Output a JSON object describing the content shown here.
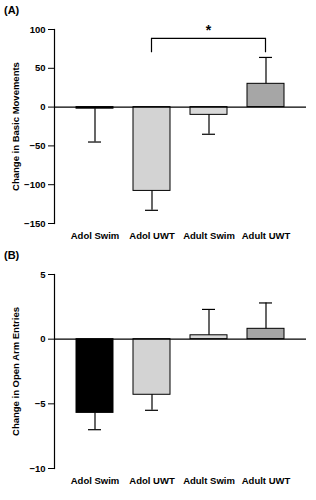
{
  "chart_data": [
    {
      "type": "bar",
      "title": "(A)",
      "y_label": "Change in Basic Movements",
      "categories": [
        "Adol Swim",
        "Adol UWT",
        "Adult Swim",
        "Adult UWT"
      ],
      "values": [
        -2,
        -108,
        -10,
        30
      ],
      "errors": [
        43,
        25,
        25,
        34
      ],
      "colors": [
        "#000000",
        "#d3d3d3",
        "#d9d9d9",
        "#a6a6a6"
      ],
      "ylim": [
        -150,
        100
      ],
      "yticks": [
        -150,
        -100,
        -50,
        0,
        50,
        100
      ],
      "annotations": [
        {
          "text": "*",
          "from": "Adol UWT",
          "to": "Adult UWT",
          "y": 88,
          "y_ends": 70
        }
      ]
    },
    {
      "type": "bar",
      "title": "(B)",
      "y_label": "Change in Open Arm Entries",
      "categories": [
        "Adol Swim",
        "Adol UWT",
        "Adult Swim",
        "Adult UWT"
      ],
      "values": [
        -5.7,
        -4.3,
        0.3,
        0.8
      ],
      "errors": [
        1.3,
        1.2,
        2.0,
        2.0
      ],
      "colors": [
        "#000000",
        "#d3d3d3",
        "#d9d9d9",
        "#a6a6a6"
      ],
      "ylim": [
        -10,
        5
      ],
      "yticks": [
        -10,
        -5,
        0,
        5
      ]
    }
  ]
}
